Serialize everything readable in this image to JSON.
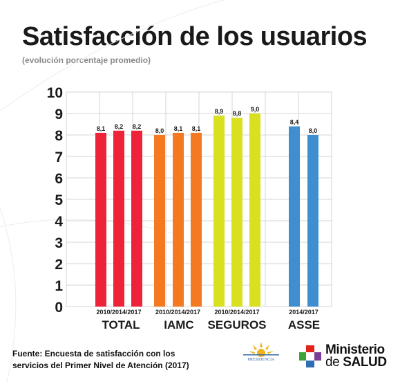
{
  "title": "Satisfacción de los usuarios",
  "subtitle": "(evolución porcentaje promedio)",
  "source_line1": "Fuente: Encuesta de satisfacción con los",
  "source_line2": "servicios del Primer Nivel de Atención (2017)",
  "logos": {
    "presidencia": "PRESIDENCIA",
    "ministerio_line1": "Ministerio",
    "ministerio_line2_prefix": "de",
    "ministerio_line2_bold": "SALUD"
  },
  "chart_data": {
    "type": "bar",
    "ylim": [
      0,
      10
    ],
    "yticks": [
      0,
      1,
      2,
      3,
      4,
      5,
      6,
      7,
      8,
      9,
      10
    ],
    "grid": true,
    "groups": [
      {
        "name": "TOTAL",
        "color": "#ee2238",
        "periods_label": "2010/2014/2017",
        "bars": [
          {
            "period": "2010",
            "value": 8.1,
            "label": "8,1"
          },
          {
            "period": "2014",
            "value": 8.2,
            "label": "8,2"
          },
          {
            "period": "2017",
            "value": 8.2,
            "label": "8,2"
          }
        ]
      },
      {
        "name": "IAMC",
        "color": "#f47920",
        "periods_label": "2010/2014/2017",
        "bars": [
          {
            "period": "2010",
            "value": 8.0,
            "label": "8,0"
          },
          {
            "period": "2014",
            "value": 8.1,
            "label": "8,1"
          },
          {
            "period": "2017",
            "value": 8.1,
            "label": "8,1"
          }
        ]
      },
      {
        "name": "SEGUROS",
        "color": "#d8e020",
        "periods_label": "2010/2014/2017",
        "bars": [
          {
            "period": "2010",
            "value": 8.9,
            "label": "8,9"
          },
          {
            "period": "2014",
            "value": 8.8,
            "label": "8,8"
          },
          {
            "period": "2017",
            "value": 9.0,
            "label": "9,0"
          }
        ]
      },
      {
        "name": "ASSE",
        "color": "#3f8fd0",
        "periods_label": "2014/2017",
        "bars": [
          {
            "period": "2014",
            "value": 8.4,
            "label": "8,4"
          },
          {
            "period": "2017",
            "value": 8.0,
            "label": "8,0"
          }
        ]
      }
    ]
  }
}
